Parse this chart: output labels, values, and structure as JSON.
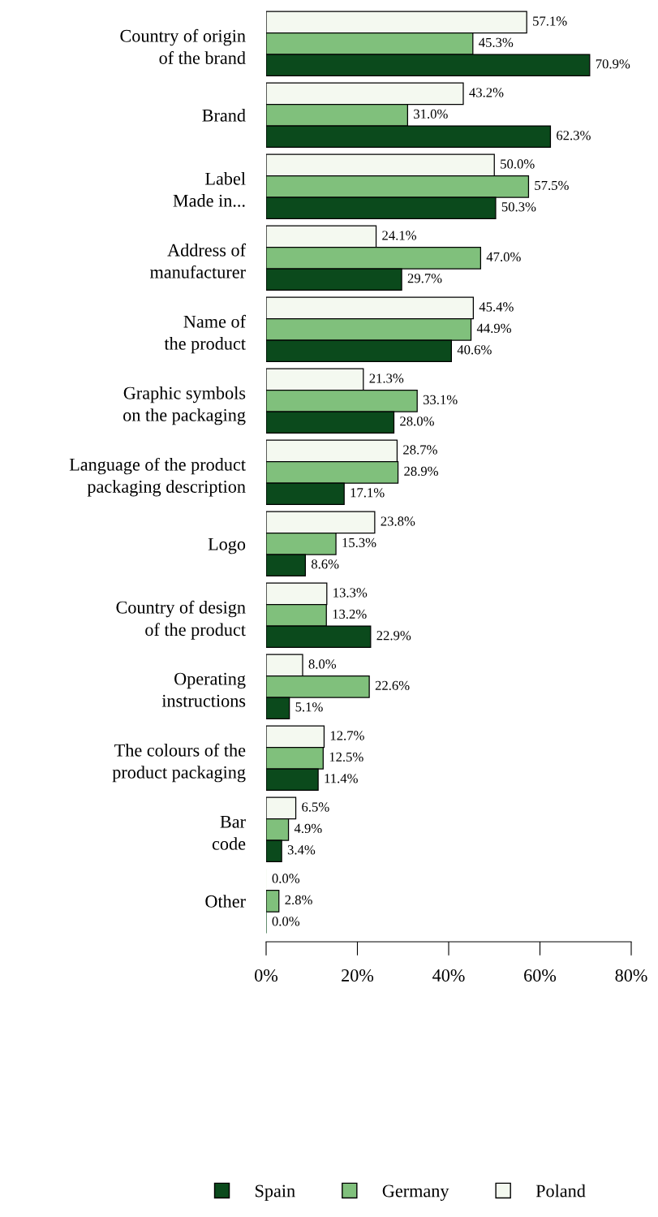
{
  "chart_data": {
    "type": "bar",
    "orientation": "horizontal",
    "categories": [
      "Country of origin\nof the brand",
      "Brand",
      "Label\nMade in...",
      "Address of\nmanufacturer",
      "Name of\nthe product",
      "Graphic symbols\non the packaging",
      "Language of the product\npackaging description",
      "Logo",
      "Country of design\nof the product",
      "Operating\ninstructions",
      "The colours of the\nproduct packaging",
      "Bar\ncode",
      "Other"
    ],
    "series": [
      {
        "name": "Poland",
        "color": "#f4f9f0",
        "values": [
          57.1,
          43.2,
          50.0,
          24.1,
          45.4,
          21.3,
          28.7,
          23.8,
          13.3,
          8.0,
          12.7,
          6.5,
          0.0
        ],
        "value_labels": [
          "57.1%",
          "43.2%",
          "50.0%",
          "24.1%",
          "45.4%",
          "21.3%",
          "28.7%",
          "23.8%",
          "13.3%",
          "8.0%",
          "12.7%",
          "6.5%",
          "0.0%"
        ]
      },
      {
        "name": "Germany",
        "color": "#80c07c",
        "values": [
          45.3,
          31.0,
          57.5,
          47.0,
          44.9,
          33.1,
          28.9,
          15.3,
          13.2,
          22.6,
          12.5,
          4.9,
          2.8
        ],
        "value_labels": [
          "45.3%",
          "31.0%",
          "57.5%",
          "47.0%",
          "44.9%",
          "33.1%",
          "28.9%",
          "15.3%",
          "13.2%",
          "22.6%",
          "12.5%",
          "4.9%",
          "2.8%"
        ]
      },
      {
        "name": "Spain",
        "color": "#0b4a1c",
        "values": [
          70.9,
          62.3,
          50.3,
          29.7,
          40.6,
          28.0,
          17.1,
          8.6,
          22.9,
          5.1,
          11.4,
          3.4,
          0.0
        ],
        "value_labels": [
          "70.9%",
          "62.3%",
          "50.3%",
          "29.7%",
          "40.6%",
          "28.0%",
          "17.1%",
          "8.6%",
          "22.9%",
          "5.1%",
          "11.4%",
          "3.4%",
          "0.0%"
        ]
      }
    ],
    "xlim": [
      0,
      80
    ],
    "xticks": [
      {
        "value": 0,
        "label": "0%"
      },
      {
        "value": 20,
        "label": "20%"
      },
      {
        "value": 40,
        "label": "40%"
      },
      {
        "value": 60,
        "label": "60%"
      },
      {
        "value": 80,
        "label": "80%"
      }
    ],
    "legend": "bottom",
    "grid": false,
    "marker": "square"
  }
}
